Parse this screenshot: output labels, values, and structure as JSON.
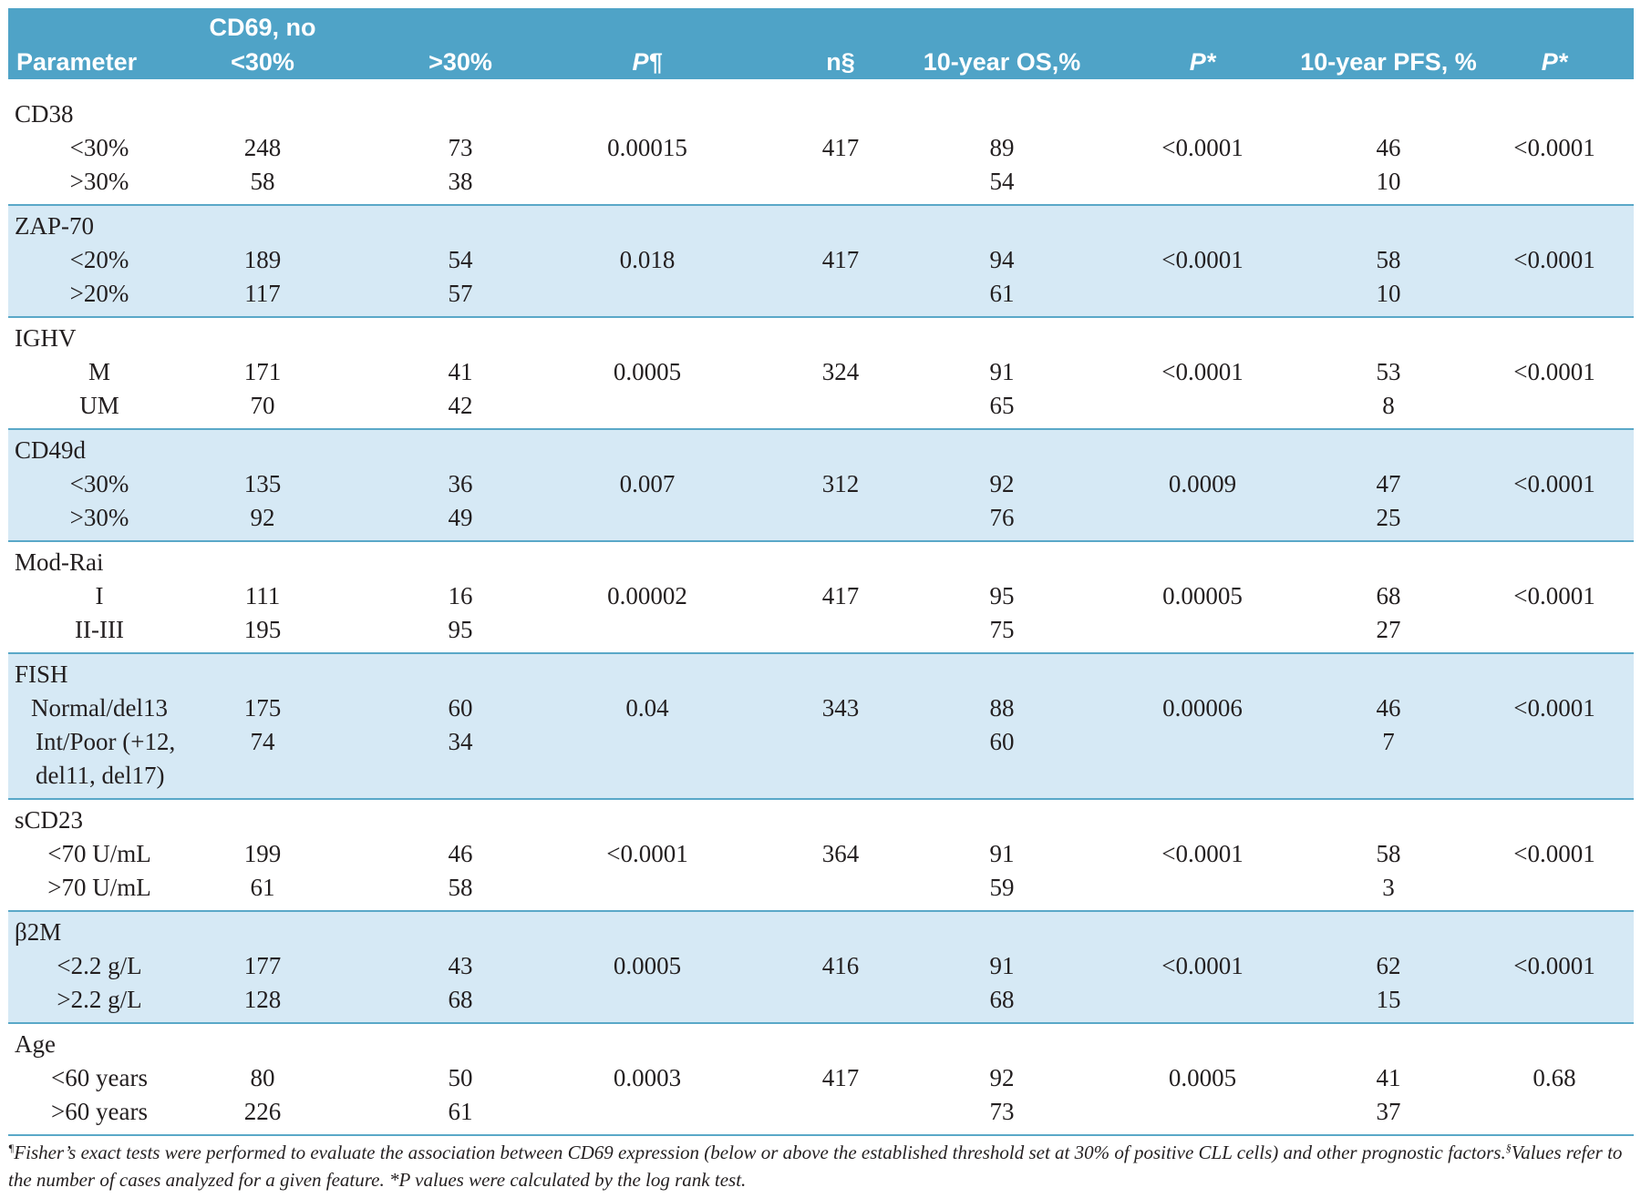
{
  "table": {
    "headers": {
      "parameter": "Parameter",
      "cd69_top": "CD69, no",
      "cd69_below": "<30%",
      "cd69_above": ">30%",
      "p_fisher": "P¶",
      "n": "n§",
      "os": "10-year OS,%",
      "p_os": "P*",
      "pfs": "10-year PFS, %",
      "p_pfs": "P*"
    },
    "groups": [
      {
        "name": "CD38",
        "p_fisher": "0.00015",
        "n": "417",
        "p_os": "<0.0001",
        "p_pfs": "<0.0001",
        "rows": [
          {
            "label": "<30%",
            "below": "248",
            "above": "73",
            "os": "89",
            "pfs": "46"
          },
          {
            "label": ">30%",
            "below": "58",
            "above": "38",
            "os": "54",
            "pfs": "10"
          }
        ]
      },
      {
        "name": "ZAP-70",
        "p_fisher": "0.018",
        "n": "417",
        "p_os": "<0.0001",
        "p_pfs": "<0.0001",
        "rows": [
          {
            "label": "<20%",
            "below": "189",
            "above": "54",
            "os": "94",
            "pfs": "58"
          },
          {
            "label": ">20%",
            "below": "117",
            "above": "57",
            "os": "61",
            "pfs": "10"
          }
        ]
      },
      {
        "name": "IGHV",
        "p_fisher": "0.0005",
        "n": "324",
        "p_os": "<0.0001",
        "p_pfs": "<0.0001",
        "rows": [
          {
            "label": "M",
            "below": "171",
            "above": "41",
            "os": "91",
            "pfs": "53"
          },
          {
            "label": "UM",
            "below": "70",
            "above": "42",
            "os": "65",
            "pfs": "8"
          }
        ]
      },
      {
        "name": "CD49d",
        "p_fisher": "0.007",
        "n": "312",
        "p_os": "0.0009",
        "p_pfs": "<0.0001",
        "rows": [
          {
            "label": "<30%",
            "below": "135",
            "above": "36",
            "os": "92",
            "pfs": "47"
          },
          {
            "label": ">30%",
            "below": "92",
            "above": "49",
            "os": "76",
            "pfs": "25"
          }
        ]
      },
      {
        "name": "Mod-Rai",
        "p_fisher": "0.00002",
        "n": "417",
        "p_os": "0.00005",
        "p_pfs": "<0.0001",
        "rows": [
          {
            "label": "I",
            "below": "111",
            "above": "16",
            "os": "95",
            "pfs": "68"
          },
          {
            "label": "II-III",
            "below": "195",
            "above": "95",
            "os": "75",
            "pfs": "27"
          }
        ]
      },
      {
        "name": "FISH",
        "p_fisher": "0.04",
        "n": "343",
        "p_os": "0.00006",
        "p_pfs": "<0.0001",
        "rows": [
          {
            "label": "Normal/del13",
            "below": "175",
            "above": "60",
            "os": "88",
            "pfs": "46"
          },
          {
            "label": "Int/Poor (+12, del11, del17)",
            "below": "74",
            "above": "34",
            "os": "60",
            "pfs": "7"
          }
        ]
      },
      {
        "name": "sCD23",
        "p_fisher": "<0.0001",
        "n": "364",
        "p_os": "<0.0001",
        "p_pfs": "<0.0001",
        "rows": [
          {
            "label": "<70 U/mL",
            "below": "199",
            "above": "46",
            "os": "91",
            "pfs": "58"
          },
          {
            "label": ">70 U/mL",
            "below": "61",
            "above": "58",
            "os": "59",
            "pfs": "3"
          }
        ]
      },
      {
        "name": "β2M",
        "p_fisher": "0.0005",
        "n": "416",
        "p_os": "<0.0001",
        "p_pfs": "<0.0001",
        "rows": [
          {
            "label": "<2.2 g/L",
            "below": "177",
            "above": "43",
            "os": "91",
            "pfs": "62"
          },
          {
            "label": ">2.2 g/L",
            "below": "128",
            "above": "68",
            "os": "68",
            "pfs": "15"
          }
        ]
      },
      {
        "name": "Age",
        "p_fisher": "0.0003",
        "n": "417",
        "p_os": "0.0005",
        "p_pfs": "0.68",
        "rows": [
          {
            "label": "<60 years",
            "below": "80",
            "above": "50",
            "os": "92",
            "pfs": "41"
          },
          {
            "label": ">60 years",
            "below": "226",
            "above": "61",
            "os": "73",
            "pfs": "37"
          }
        ]
      }
    ]
  },
  "footnote": {
    "mark1": "¶",
    "text1": "Fisher’s exact tests were performed to evaluate the association between CD69 expression (below or above the established threshold set at 30% of positive CLL cells) and other prognostic factors.",
    "mark2": "§",
    "text2": "Values refer to the number of cases analyzed for a given feature. *P values were calculated by the log rank test."
  }
}
